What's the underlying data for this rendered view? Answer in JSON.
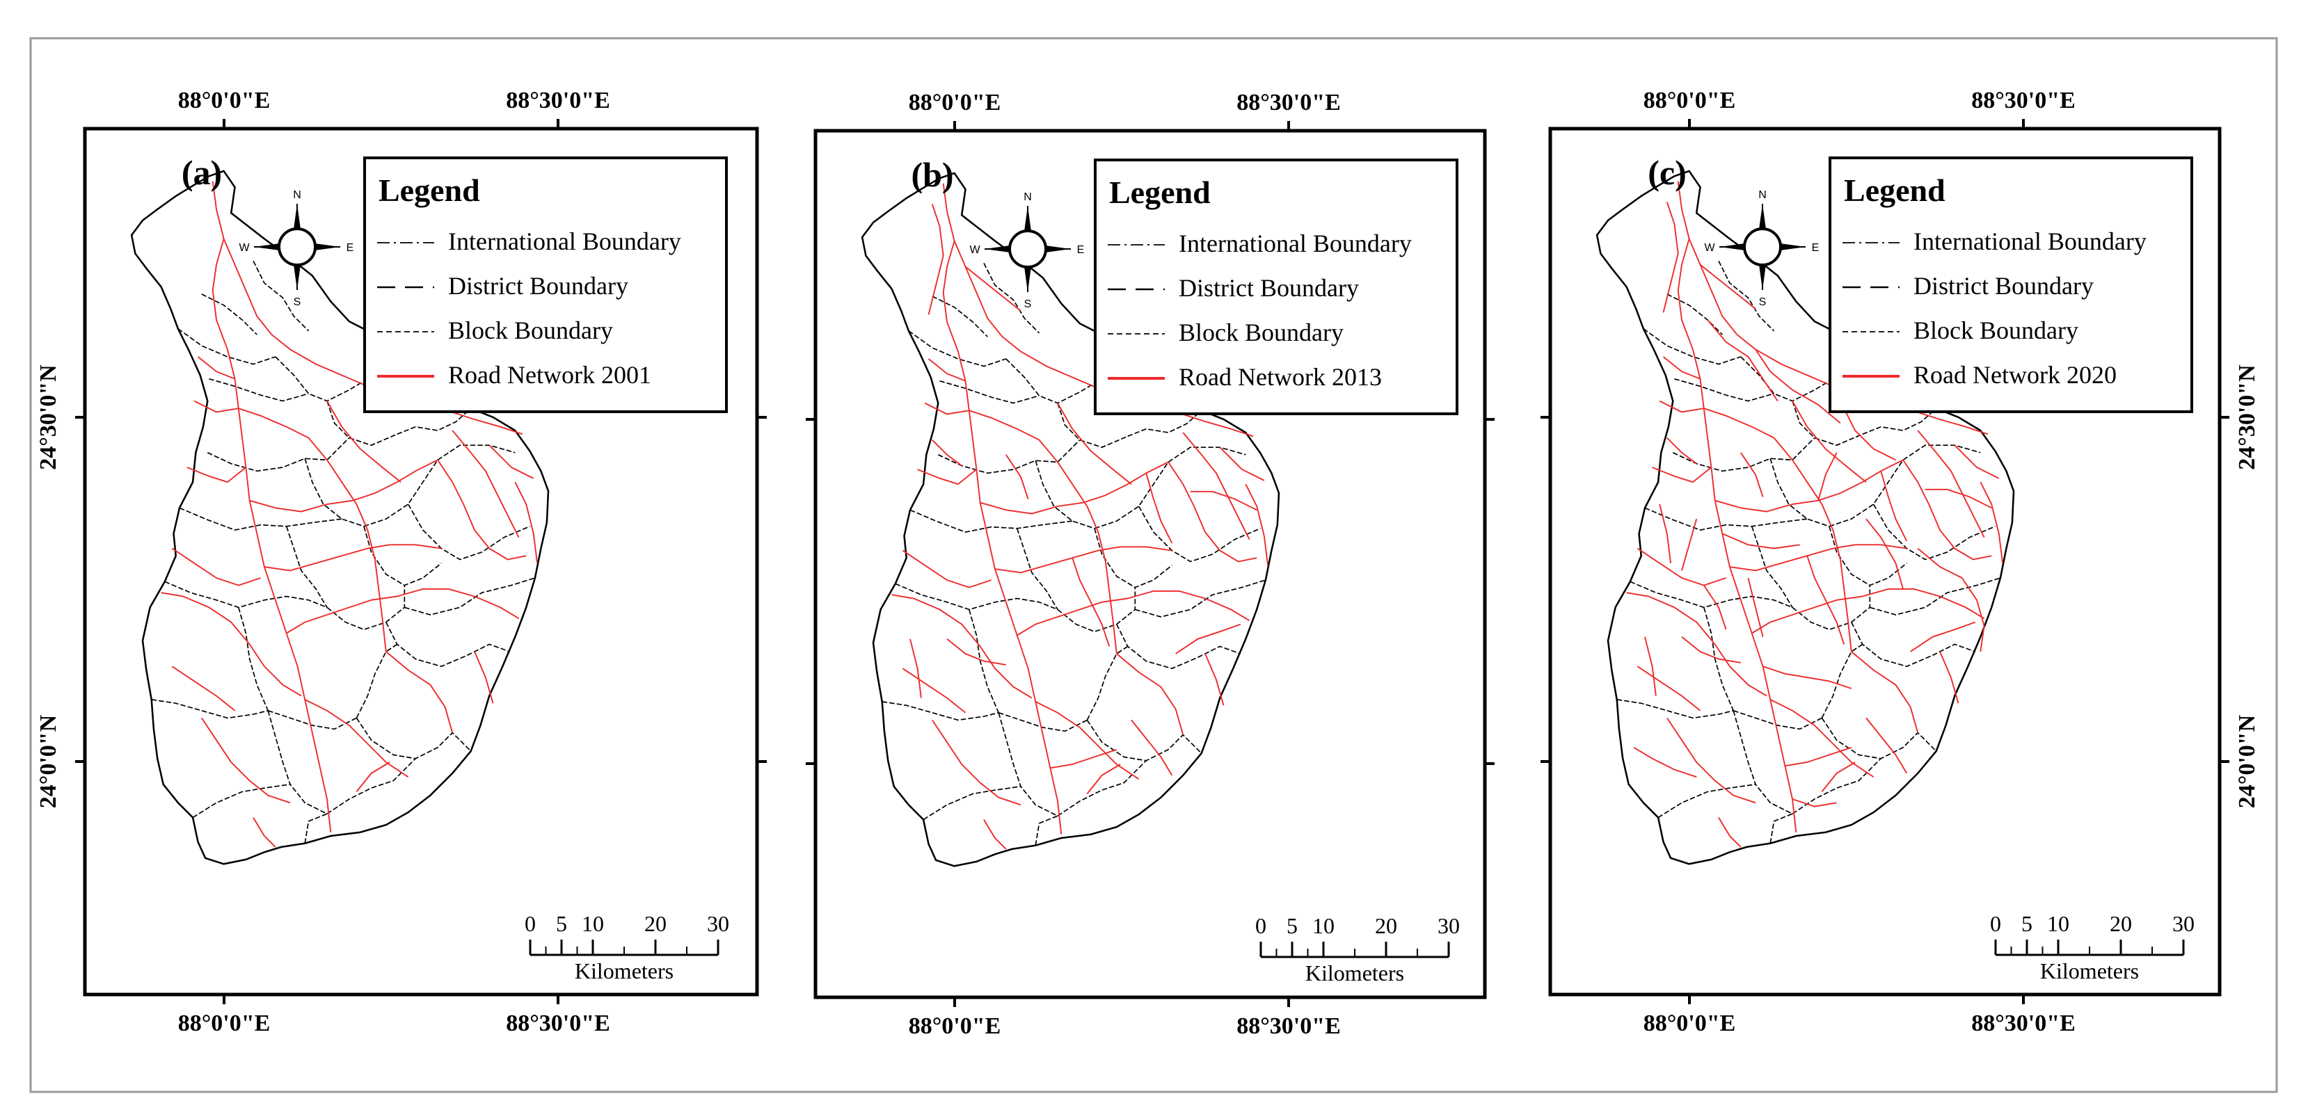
{
  "figure": {
    "panels": [
      {
        "label": "(a)",
        "legend": {
          "title": "Legend",
          "items": [
            {
              "label": "International Boundary",
              "style": "dash-dot"
            },
            {
              "label": "District Boundary",
              "style": "long-dash"
            },
            {
              "label": "Block Boundary",
              "style": "short-dash"
            },
            {
              "label": "Road Network 2001",
              "style": "solid-red"
            }
          ]
        },
        "top_ticks": [
          "88°0'0\"E",
          "88°30'0\"E"
        ],
        "bottom_ticks": [
          "88°0'0\"E",
          "88°30'0\"E"
        ]
      },
      {
        "label": "(b)",
        "legend": {
          "title": "Legend",
          "items": [
            {
              "label": "International Boundary",
              "style": "dash-dot"
            },
            {
              "label": "District Boundary",
              "style": "long-dash"
            },
            {
              "label": "Block Boundary",
              "style": "short-dash"
            },
            {
              "label": "Road Network 2013",
              "style": "solid-red"
            }
          ]
        },
        "top_ticks": [
          "88°0'0\"E",
          "88°30'0\"E"
        ],
        "bottom_ticks": [
          "88°0'0\"E",
          "88°30'0\"E"
        ]
      },
      {
        "label": "(c)",
        "legend": {
          "title": "Legend",
          "items": [
            {
              "label": "International Boundary",
              "style": "dash-dot"
            },
            {
              "label": "District Boundary",
              "style": "long-dash"
            },
            {
              "label": "Block Boundary",
              "style": "short-dash"
            },
            {
              "label": "Road Network 2020",
              "style": "solid-red"
            }
          ]
        },
        "top_ticks": [
          "88°0'0\"E",
          "88°30'0\"E"
        ],
        "bottom_ticks": [
          "88°0'0\"E",
          "88°30'0\"E"
        ]
      }
    ],
    "latitude_labels": [
      "24°30'0\"N",
      "24°0'0\"N"
    ],
    "scale_bar": {
      "ticks": [
        "0",
        "5",
        "10",
        "20",
        "30"
      ],
      "unit": "Kilometers"
    },
    "compass": {
      "n": "N",
      "s": "S",
      "e": "E",
      "w": "W"
    },
    "colors": {
      "road": "#ee2b2b",
      "boundary": "#000000",
      "frame": "#000000",
      "outer_border": "#9a9a9a"
    }
  }
}
